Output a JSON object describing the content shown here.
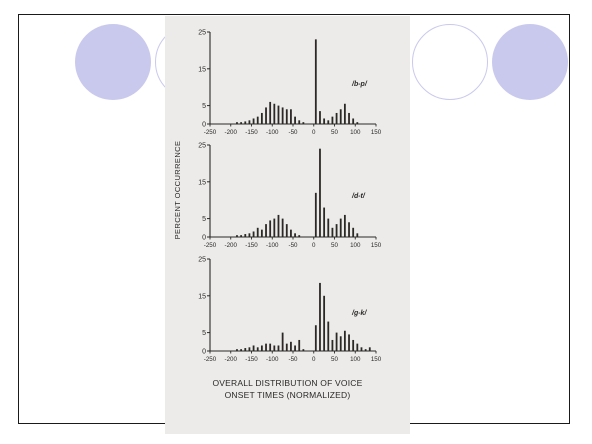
{
  "slide": {
    "ylabel": "PERCENT OCCURRENCE",
    "caption_line1": "OVERALL DISTRIBUTION OF VOICE",
    "caption_line2": "ONSET TIMES (NORMALIZED)",
    "accent_color": "#c9c9ee"
  },
  "chart_data": [
    {
      "type": "bar",
      "label": "/b-p/",
      "ylabel": "PERCENT OCCURRENCE",
      "yticks": [
        0,
        5,
        15,
        25
      ],
      "ylim": [
        0,
        25
      ],
      "xticks": [
        -250,
        -200,
        -150,
        -100,
        -50,
        0,
        50,
        100,
        150
      ],
      "xlim": [
        -250,
        150
      ],
      "x": [
        -185,
        -175,
        -165,
        -155,
        -145,
        -135,
        -125,
        -115,
        -105,
        -95,
        -85,
        -75,
        -65,
        -55,
        -45,
        -35,
        -25,
        5,
        15,
        25,
        35,
        45,
        55,
        65,
        75,
        85,
        95,
        105
      ],
      "values": [
        0.5,
        0.5,
        0.7,
        1,
        1.5,
        2,
        3,
        4.5,
        6,
        5.5,
        5,
        4.5,
        4,
        4,
        2,
        1,
        0.5,
        23,
        3.5,
        1.5,
        1,
        2,
        3,
        4,
        5.5,
        3,
        1.5,
        0.5
      ]
    },
    {
      "type": "bar",
      "label": "/d-t/",
      "ylabel": "PERCENT OCCURRENCE",
      "yticks": [
        0,
        5,
        15,
        25
      ],
      "ylim": [
        0,
        25
      ],
      "xticks": [
        -250,
        -200,
        -150,
        -100,
        -50,
        0,
        50,
        100,
        150
      ],
      "xlim": [
        -250,
        150
      ],
      "x": [
        -185,
        -175,
        -165,
        -155,
        -145,
        -135,
        -125,
        -115,
        -105,
        -95,
        -85,
        -75,
        -65,
        -55,
        -45,
        -35,
        5,
        15,
        25,
        35,
        45,
        55,
        65,
        75,
        85,
        95,
        105
      ],
      "values": [
        0.5,
        0.5,
        0.8,
        1,
        1.5,
        2.5,
        2,
        3.5,
        4.5,
        5,
        6,
        5,
        3.5,
        2,
        1,
        0.5,
        12,
        24,
        8,
        5,
        2.5,
        3.5,
        5,
        6,
        4,
        2.5,
        1
      ]
    },
    {
      "type": "bar",
      "label": "/g-k/",
      "ylabel": "PERCENT OCCURRENCE",
      "yticks": [
        0,
        5,
        15,
        25
      ],
      "ylim": [
        0,
        25
      ],
      "xticks": [
        -250,
        -200,
        -150,
        -100,
        -50,
        0,
        50,
        100,
        150
      ],
      "xlim": [
        -250,
        150
      ],
      "x": [
        -185,
        -175,
        -165,
        -155,
        -145,
        -135,
        -125,
        -115,
        -105,
        -95,
        -85,
        -75,
        -65,
        -55,
        -45,
        -35,
        -25,
        5,
        15,
        25,
        35,
        45,
        55,
        65,
        75,
        85,
        95,
        105,
        115,
        125,
        135
      ],
      "values": [
        0.5,
        0.5,
        0.8,
        1,
        1.5,
        1,
        1.5,
        2,
        2,
        1.5,
        1.5,
        5,
        2,
        2.5,
        1.5,
        3,
        0.5,
        7,
        18.5,
        15,
        8,
        3,
        5,
        4,
        5.5,
        4.5,
        3,
        2,
        1,
        0.5,
        1
      ]
    }
  ]
}
